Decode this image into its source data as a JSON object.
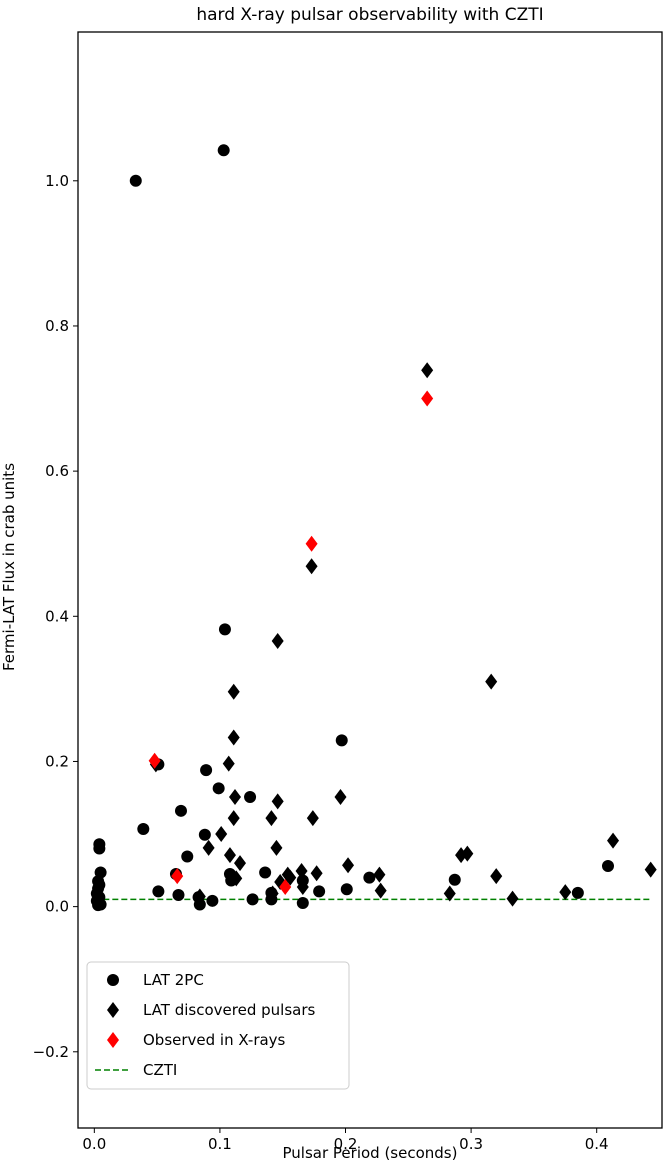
{
  "chart_data": {
    "type": "scatter",
    "title": "hard X-ray pulsar observability with CZTI",
    "xlabel": "Pulsar Period (seconds)",
    "ylabel": "Fermi-LAT Flux in crab units",
    "xlim": [
      -0.013,
      0.452
    ],
    "ylim": [
      -0.305,
      1.205
    ],
    "xticks": [
      0.0,
      0.1,
      0.2,
      0.3,
      0.4
    ],
    "xtick_labels": [
      "0.0",
      "0.1",
      "0.2",
      "0.3",
      "0.4"
    ],
    "yticks": [
      -0.2,
      0.0,
      0.2,
      0.4,
      0.6,
      0.8,
      1.0
    ],
    "ytick_labels": [
      "−0.2",
      "0.0",
      "0.2",
      "0.4",
      "0.6",
      "0.8",
      "1.0"
    ],
    "grid": false,
    "legend_position": "bottom-left",
    "colors": {
      "circle": "#000000",
      "diamond": "#000000",
      "xray": "#ff0000",
      "czti": "#008000"
    },
    "series": [
      {
        "name": "LAT 2PC",
        "marker": "circle",
        "color": "#000000",
        "points": [
          [
            0.033,
            1.0
          ],
          [
            0.103,
            1.042
          ],
          [
            0.104,
            0.382
          ],
          [
            0.197,
            0.229
          ],
          [
            0.051,
            0.196
          ],
          [
            0.089,
            0.188
          ],
          [
            0.099,
            0.163
          ],
          [
            0.124,
            0.151
          ],
          [
            0.069,
            0.132
          ],
          [
            0.039,
            0.107
          ],
          [
            0.088,
            0.099
          ],
          [
            0.074,
            0.069
          ],
          [
            0.004,
            0.086
          ],
          [
            0.004,
            0.08
          ],
          [
            0.005,
            0.047
          ],
          [
            0.136,
            0.047
          ],
          [
            0.065,
            0.045
          ],
          [
            0.108,
            0.045
          ],
          [
            0.003,
            0.035
          ],
          [
            0.004,
            0.03
          ],
          [
            0.003,
            0.025
          ],
          [
            0.002,
            0.018
          ],
          [
            0.004,
            0.013
          ],
          [
            0.002,
            0.008
          ],
          [
            0.005,
            0.003
          ],
          [
            0.003,
            0.002
          ],
          [
            0.109,
            0.036
          ],
          [
            0.166,
            0.036
          ],
          [
            0.219,
            0.04
          ],
          [
            0.287,
            0.037
          ],
          [
            0.409,
            0.056
          ],
          [
            0.051,
            0.021
          ],
          [
            0.141,
            0.019
          ],
          [
            0.179,
            0.021
          ],
          [
            0.201,
            0.024
          ],
          [
            0.067,
            0.016
          ],
          [
            0.083,
            0.013
          ],
          [
            0.126,
            0.01
          ],
          [
            0.141,
            0.01
          ],
          [
            0.094,
            0.008
          ],
          [
            0.166,
            0.005
          ],
          [
            0.084,
            0.003
          ],
          [
            0.385,
            0.019
          ]
        ]
      },
      {
        "name": "LAT discovered pulsars",
        "marker": "diamond",
        "color": "#000000",
        "points": [
          [
            0.265,
            0.739
          ],
          [
            0.173,
            0.469
          ],
          [
            0.146,
            0.366
          ],
          [
            0.316,
            0.31
          ],
          [
            0.111,
            0.296
          ],
          [
            0.111,
            0.233
          ],
          [
            0.107,
            0.197
          ],
          [
            0.049,
            0.196
          ],
          [
            0.112,
            0.151
          ],
          [
            0.196,
            0.151
          ],
          [
            0.146,
            0.145
          ],
          [
            0.141,
            0.122
          ],
          [
            0.111,
            0.122
          ],
          [
            0.174,
            0.122
          ],
          [
            0.101,
            0.1
          ],
          [
            0.145,
            0.081
          ],
          [
            0.091,
            0.081
          ],
          [
            0.108,
            0.071
          ],
          [
            0.292,
            0.071
          ],
          [
            0.297,
            0.073
          ],
          [
            0.413,
            0.091
          ],
          [
            0.443,
            0.051
          ],
          [
            0.116,
            0.06
          ],
          [
            0.202,
            0.057
          ],
          [
            0.165,
            0.049
          ],
          [
            0.32,
            0.042
          ],
          [
            0.154,
            0.044
          ],
          [
            0.177,
            0.046
          ],
          [
            0.227,
            0.044
          ],
          [
            0.113,
            0.039
          ],
          [
            0.148,
            0.034
          ],
          [
            0.156,
            0.04
          ],
          [
            0.228,
            0.022
          ],
          [
            0.283,
            0.018
          ],
          [
            0.375,
            0.02
          ],
          [
            0.084,
            0.014
          ],
          [
            0.333,
            0.011
          ],
          [
            0.142,
            0.018
          ],
          [
            0.166,
            0.027
          ]
        ]
      },
      {
        "name": "Observed in X-rays",
        "marker": "diamond",
        "color": "#ff0000",
        "points": [
          [
            0.265,
            0.7
          ],
          [
            0.173,
            0.5
          ],
          [
            0.048,
            0.201
          ],
          [
            0.066,
            0.042
          ],
          [
            0.152,
            0.027
          ]
        ]
      },
      {
        "name": "CZTI",
        "marker": "line",
        "style": "dashed",
        "color": "#008000",
        "x": [
          0.0,
          0.443
        ],
        "y": [
          0.01,
          0.01
        ]
      }
    ]
  }
}
